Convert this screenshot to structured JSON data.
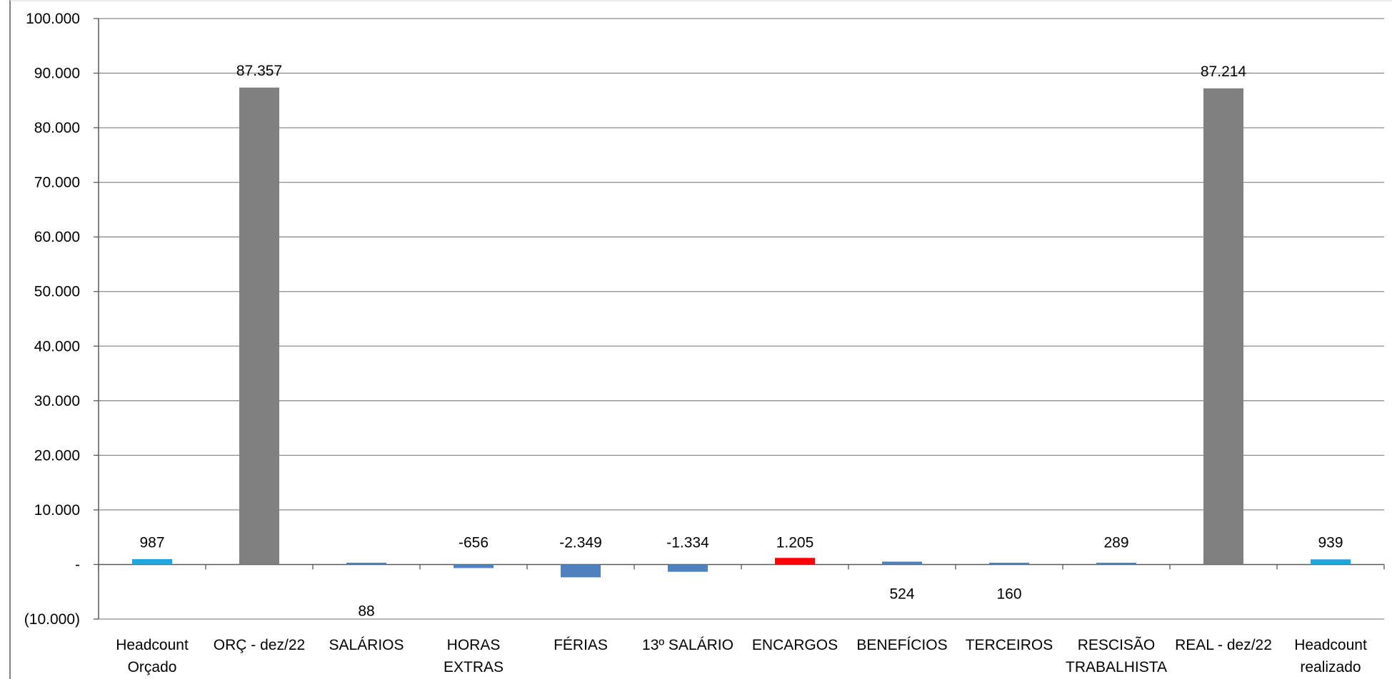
{
  "chart_data": {
    "type": "bar",
    "title": "",
    "xlabel": "",
    "ylabel": "",
    "ylim": [
      -10000,
      100000
    ],
    "y_ticks": [
      {
        "value": 100000,
        "label": "100.000"
      },
      {
        "value": 90000,
        "label": "90.000"
      },
      {
        "value": 80000,
        "label": "80.000"
      },
      {
        "value": 70000,
        "label": "70.000"
      },
      {
        "value": 60000,
        "label": "60.000"
      },
      {
        "value": 50000,
        "label": "50.000"
      },
      {
        "value": 40000,
        "label": "40.000"
      },
      {
        "value": 30000,
        "label": "30.000"
      },
      {
        "value": 20000,
        "label": "20.000"
      },
      {
        "value": 10000,
        "label": "10.000"
      },
      {
        "value": 0,
        "label": "-"
      },
      {
        "value": -10000,
        "label": "(10.000)"
      }
    ],
    "grid": true,
    "legend": "none",
    "bars": [
      {
        "category": [
          "Headcount",
          "Orçado"
        ],
        "value": 987,
        "label": "987",
        "color": "#1FA7E0",
        "label_pos": "above"
      },
      {
        "category": [
          "ORÇ - dez/22"
        ],
        "value": 87357,
        "label": "87.357",
        "color": "#808080",
        "label_pos": "above"
      },
      {
        "category": [
          "SALÁRIOS"
        ],
        "value": 88,
        "label": "88",
        "color": "#4F81BD",
        "label_pos": "below"
      },
      {
        "category": [
          "HORAS",
          "EXTRAS"
        ],
        "value": -656,
        "label": "-656",
        "color": "#4F81BD",
        "label_pos": "above"
      },
      {
        "category": [
          "FÉRIAS"
        ],
        "value": -2349,
        "label": "-2.349",
        "color": "#4F81BD",
        "label_pos": "above"
      },
      {
        "category": [
          "13º SALÁRIO"
        ],
        "value": -1334,
        "label": "-1.334",
        "color": "#4F81BD",
        "label_pos": "above"
      },
      {
        "category": [
          "ENCARGOS"
        ],
        "value": 1205,
        "label": "1.205",
        "color": "#FF0000",
        "label_pos": "above"
      },
      {
        "category": [
          "BENEFÍCIOS"
        ],
        "value": 524,
        "label": "524",
        "color": "#4F81BD",
        "label_pos": "below"
      },
      {
        "category": [
          "TERCEIROS"
        ],
        "value": 160,
        "label": "160",
        "color": "#4F81BD",
        "label_pos": "below"
      },
      {
        "category": [
          "RESCISÃO",
          "TRABALHISTA"
        ],
        "value": 289,
        "label": "289",
        "color": "#4F81BD",
        "label_pos": "above"
      },
      {
        "category": [
          "REAL - dez/22"
        ],
        "value": 87214,
        "label": "87.214",
        "color": "#808080",
        "label_pos": "above"
      },
      {
        "category": [
          "Headcount",
          "realizado"
        ],
        "value": 939,
        "label": "939",
        "color": "#1FA7E0",
        "label_pos": "above"
      }
    ]
  }
}
